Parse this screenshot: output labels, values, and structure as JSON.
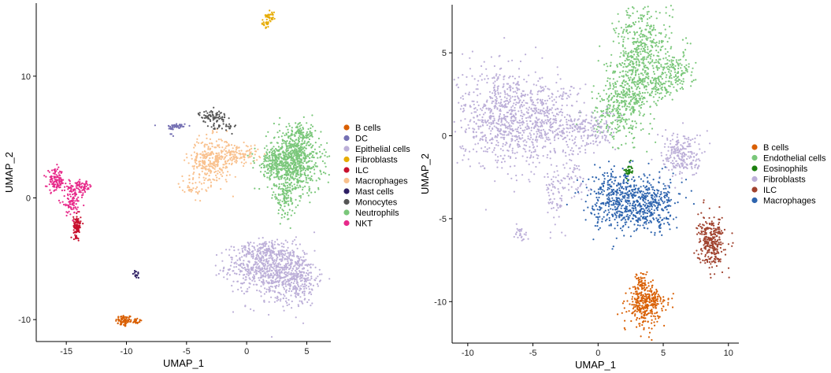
{
  "chart_data": [
    {
      "type": "scatter",
      "xlabel": "UMAP_1",
      "ylabel": "UMAP_2",
      "xlim": [
        -17.5,
        7
      ],
      "ylim": [
        -11.8,
        16
      ],
      "xticks": [
        -15,
        -10,
        -5,
        0,
        5
      ],
      "yticks": [
        -10,
        0,
        10
      ],
      "legend_position": "right",
      "series": [
        {
          "name": "B cells",
          "color": "#D95F02",
          "clusters": [
            {
              "cx": -10.2,
              "cy": -10.1,
              "sx": 0.35,
              "sy": 0.25,
              "n": 70
            },
            {
              "cx": -9.3,
              "cy": -10.1,
              "sx": 0.3,
              "sy": 0.12,
              "n": 25
            }
          ]
        },
        {
          "name": "DC",
          "color": "#7570B3",
          "clusters": [
            {
              "cx": -5.8,
              "cy": 5.9,
              "sx": 0.45,
              "sy": 0.12,
              "n": 40
            },
            {
              "cx": -6.2,
              "cy": 5.6,
              "sx": 0.12,
              "sy": 0.3,
              "n": 12
            }
          ]
        },
        {
          "name": "Epithelial cells",
          "color": "#BCAFD8",
          "clusters": [
            {
              "cx": 1.2,
              "cy": -5.6,
              "sx": 1.5,
              "sy": 0.9,
              "n": 380
            },
            {
              "cx": 2.8,
              "cy": -6.4,
              "sx": 1.4,
              "sy": 1.3,
              "n": 330
            },
            {
              "cx": 4.3,
              "cy": -6.6,
              "sx": 0.8,
              "sy": 1.1,
              "n": 200
            },
            {
              "cx": 1.5,
              "cy": -4.2,
              "sx": 1.2,
              "sy": 0.35,
              "n": 90
            }
          ]
        },
        {
          "name": "Fibroblasts",
          "color": "#E6AB02",
          "clusters": [
            {
              "cx": 2.0,
              "cy": 15.0,
              "sx": 0.2,
              "sy": 0.25,
              "n": 30
            },
            {
              "cx": 1.5,
              "cy": 14.3,
              "sx": 0.3,
              "sy": 0.15,
              "n": 20
            }
          ]
        },
        {
          "name": "ILC",
          "color": "#C8102E",
          "clusters": [
            {
              "cx": -14.1,
              "cy": -2.3,
              "sx": 0.15,
              "sy": 0.45,
              "n": 110
            }
          ]
        },
        {
          "name": "Macrophages",
          "color": "#F9C18E",
          "clusters": [
            {
              "cx": -3.0,
              "cy": 3.0,
              "sx": 0.9,
              "sy": 1.0,
              "n": 300
            },
            {
              "cx": -0.8,
              "cy": 3.6,
              "sx": 0.9,
              "sy": 0.4,
              "n": 120
            },
            {
              "cx": -4.6,
              "cy": 1.0,
              "sx": 0.5,
              "sy": 0.5,
              "n": 30
            }
          ]
        },
        {
          "name": "Mast cells",
          "color": "#2D1E63",
          "clusters": [
            {
              "cx": -9.2,
              "cy": -6.3,
              "sx": 0.12,
              "sy": 0.18,
              "n": 15
            }
          ]
        },
        {
          "name": "Monocytes",
          "color": "#555555",
          "clusters": [
            {
              "cx": -2.8,
              "cy": 6.7,
              "sx": 0.6,
              "sy": 0.25,
              "n": 80
            },
            {
              "cx": -2.0,
              "cy": 5.8,
              "sx": 0.6,
              "sy": 0.2,
              "n": 30
            }
          ]
        },
        {
          "name": "Neutrophils",
          "color": "#7AC77A",
          "clusters": [
            {
              "cx": 4.0,
              "cy": 3.0,
              "sx": 1.1,
              "sy": 1.3,
              "n": 700
            },
            {
              "cx": 2.3,
              "cy": 3.0,
              "sx": 0.8,
              "sy": 0.6,
              "n": 160
            },
            {
              "cx": 3.2,
              "cy": 0.0,
              "sx": 0.5,
              "sy": 0.8,
              "n": 110
            },
            {
              "cx": 4.5,
              "cy": 5.2,
              "sx": 0.6,
              "sy": 0.5,
              "n": 80
            }
          ]
        },
        {
          "name": "NKT",
          "color": "#E7298A",
          "clusters": [
            {
              "cx": -15.9,
              "cy": 1.4,
              "sx": 0.35,
              "sy": 0.45,
              "n": 110
            },
            {
              "cx": -13.8,
              "cy": 0.9,
              "sx": 0.5,
              "sy": 0.25,
              "n": 80
            },
            {
              "cx": -14.6,
              "cy": -0.3,
              "sx": 0.4,
              "sy": 0.6,
              "n": 90
            }
          ]
        }
      ]
    },
    {
      "type": "scatter",
      "xlabel": "UMAP_1",
      "ylabel": "UMAP_2",
      "xlim": [
        -11.2,
        10.8
      ],
      "ylim": [
        -12.5,
        7.9
      ],
      "xticks": [
        -10,
        -5,
        0,
        5,
        10
      ],
      "yticks": [
        -10,
        -5,
        0,
        5
      ],
      "legend_position": "right",
      "series": [
        {
          "name": "B cells",
          "color": "#D95F02",
          "clusters": [
            {
              "cx": 3.5,
              "cy": -10.2,
              "sx": 0.6,
              "sy": 0.6,
              "n": 260
            },
            {
              "cx": 3.4,
              "cy": -8.9,
              "sx": 0.25,
              "sy": 0.4,
              "n": 60
            },
            {
              "cx": 4.5,
              "cy": -10.0,
              "sx": 0.6,
              "sy": 0.3,
              "n": 60
            }
          ]
        },
        {
          "name": "Endothelial cells",
          "color": "#7AC77A",
          "clusters": [
            {
              "cx": 3.5,
              "cy": 5.0,
              "sx": 1.1,
              "sy": 1.6,
              "n": 480
            },
            {
              "cx": 2.3,
              "cy": 2.6,
              "sx": 0.9,
              "sy": 1.2,
              "n": 320
            },
            {
              "cx": 1.0,
              "cy": 1.2,
              "sx": 0.9,
              "sy": 0.7,
              "n": 120
            },
            {
              "cx": 6.0,
              "cy": 3.8,
              "sx": 0.7,
              "sy": 0.6,
              "n": 110
            },
            {
              "cx": 4.8,
              "cy": 3.0,
              "sx": 0.6,
              "sy": 0.4,
              "n": 60
            }
          ]
        },
        {
          "name": "Eosinophils",
          "color": "#1B7F0E",
          "clusters": [
            {
              "cx": 2.3,
              "cy": -2.1,
              "sx": 0.15,
              "sy": 0.22,
              "n": 35
            }
          ]
        },
        {
          "name": "Fibroblasts",
          "color": "#BCAFD8",
          "clusters": [
            {
              "cx": -7.5,
              "cy": 1.2,
              "sx": 1.6,
              "sy": 1.6,
              "n": 650
            },
            {
              "cx": -4.2,
              "cy": 1.0,
              "sx": 1.5,
              "sy": 1.2,
              "n": 380
            },
            {
              "cx": -1.0,
              "cy": 0.3,
              "sx": 1.2,
              "sy": 0.6,
              "n": 180
            },
            {
              "cx": 6.5,
              "cy": -1.2,
              "sx": 0.8,
              "sy": 0.7,
              "n": 220
            },
            {
              "cx": -3.3,
              "cy": -3.6,
              "sx": 0.4,
              "sy": 1.0,
              "n": 70
            },
            {
              "cx": -1.8,
              "cy": -2.6,
              "sx": 0.5,
              "sy": 0.7,
              "n": 50
            },
            {
              "cx": -6.0,
              "cy": -5.9,
              "sx": 0.3,
              "sy": 0.2,
              "n": 25
            }
          ]
        },
        {
          "name": "ILC",
          "color": "#A0422E",
          "clusters": [
            {
              "cx": 8.7,
              "cy": -6.4,
              "sx": 0.5,
              "sy": 0.75,
              "n": 300
            }
          ]
        },
        {
          "name": "Macrophages",
          "color": "#2E64AE",
          "clusters": [
            {
              "cx": 2.5,
              "cy": -4.2,
              "sx": 1.5,
              "sy": 0.8,
              "n": 500
            },
            {
              "cx": 1.3,
              "cy": -3.1,
              "sx": 1.0,
              "sy": 0.6,
              "n": 130
            },
            {
              "cx": 4.5,
              "cy": -3.8,
              "sx": 0.8,
              "sy": 0.7,
              "n": 120
            },
            {
              "cx": 4.7,
              "cy": -5.4,
              "sx": 0.15,
              "sy": 0.3,
              "n": 12
            }
          ]
        }
      ]
    }
  ]
}
